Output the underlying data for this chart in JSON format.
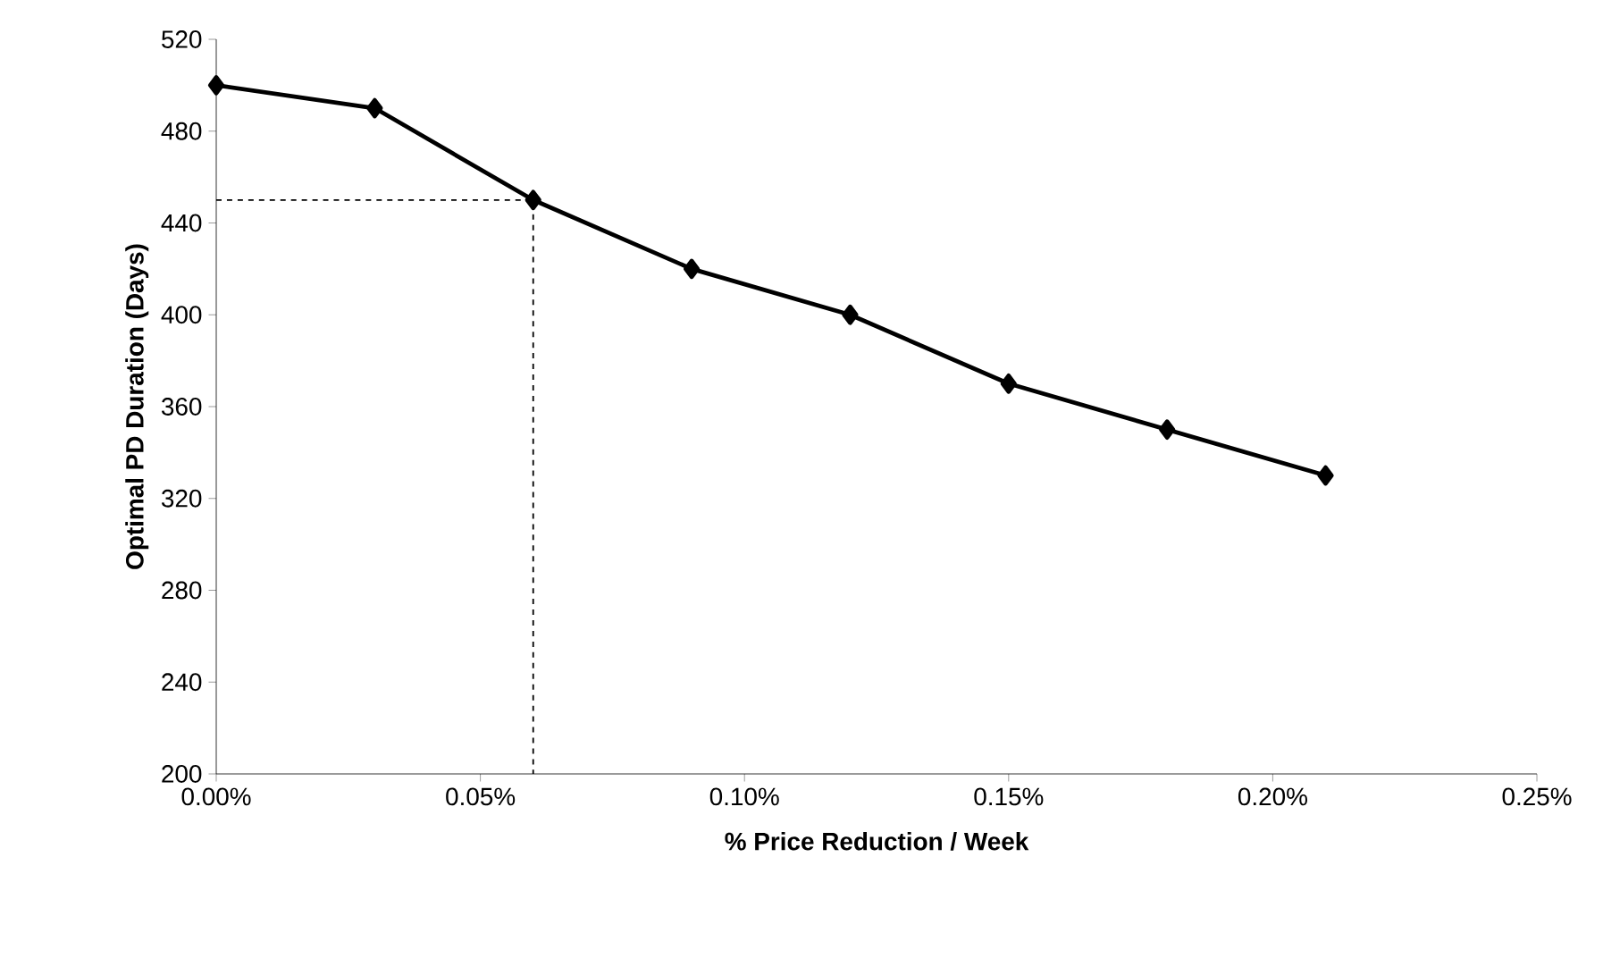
{
  "chart_data": {
    "type": "line",
    "xlabel": "% Price Reduction  / Week",
    "ylabel": "Optimal PD Duration (Days)",
    "xlim": [
      0,
      0.25
    ],
    "xticks": [
      {
        "value": 0,
        "label": "0.00%"
      },
      {
        "value": 0.05,
        "label": "0.05%"
      },
      {
        "value": 0.1,
        "label": "0.10%"
      },
      {
        "value": 0.15,
        "label": "0.15%"
      },
      {
        "value": 0.2,
        "label": "0.20%"
      },
      {
        "value": 0.25,
        "label": "0.25%"
      }
    ],
    "ylim": [
      200,
      520
    ],
    "yticks": [
      200,
      240,
      280,
      320,
      360,
      400,
      440,
      480,
      520
    ],
    "series": [
      {
        "color": "#000000",
        "marker": "diamond",
        "line_style": "solid",
        "x": [
          0,
          0.03,
          0.06,
          0.09,
          0.12,
          0.15,
          0.18,
          0.21
        ],
        "values": [
          500,
          490,
          450,
          420,
          400,
          370,
          350,
          330
        ]
      },
      {
        "color": "#000000",
        "marker": "none",
        "line_style": "dashed",
        "x": [
          0,
          0.06,
          0.06
        ],
        "values": [
          450,
          450,
          200
        ]
      }
    ]
  }
}
